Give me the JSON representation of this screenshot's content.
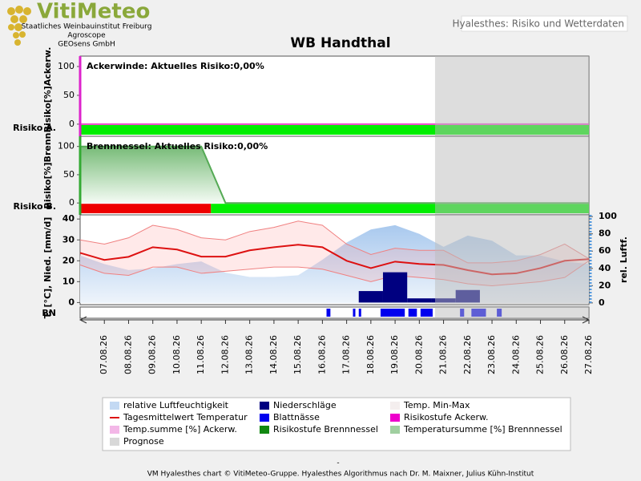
{
  "header": {
    "logo": "VitiMeteo",
    "institutions": [
      "Staatliches Weinbauinstitut Freiburg",
      "Agroscope",
      "GEOsens GmbH"
    ],
    "tab": "Hyalesthes: Risiko und Wetterdaten"
  },
  "title": "WB Handthal",
  "chart_data": [
    {
      "type": "risk",
      "annotation": "Ackerwinde: Aktuelles Risiko:0,00%",
      "ylabel": "Risiko[%]Ackerw.",
      "risk_label": "Risiko A.",
      "ylim": [
        -21,
        118
      ],
      "yticks": [
        0,
        50,
        100
      ],
      "axis_color": "#dd22cc",
      "series": [
        {
          "color": "#ee44cc",
          "fill": false,
          "x": [
            6,
            27
          ],
          "values": [
            0,
            0
          ]
        }
      ],
      "risk_levels": [
        {
          "from": 6,
          "to": 27,
          "color": "#00ee00"
        }
      ]
    },
    {
      "type": "risk",
      "annotation": "Brennnessel: Aktuelles Risiko:0,00%",
      "ylabel": "Risiko[%]Brenn.",
      "risk_label": "Risiko B.",
      "ylim": [
        -21,
        118
      ],
      "yticks": [
        0,
        50,
        100
      ],
      "axis_color": "#33aa33",
      "series": [
        {
          "color": "#55aa55",
          "fill": true,
          "x": [
            6,
            11,
            12,
            27
          ],
          "values": [
            100,
            100,
            0,
            0
          ]
        }
      ],
      "risk_levels": [
        {
          "from": 6,
          "to": 11.4,
          "color": "#ee0000"
        },
        {
          "from": 11.4,
          "to": 27,
          "color": "#00ee00"
        }
      ]
    },
    {
      "type": "weather",
      "ylabel": "T. [°C], Nied. [mm/d]",
      "y2label": "rel. Luftf.",
      "xlim": [
        6,
        27
      ],
      "xticks": [
        {
          "value": 7,
          "label": "07.08.26"
        },
        {
          "value": 8,
          "label": "08.08.26"
        },
        {
          "value": 9,
          "label": "09.08.26"
        },
        {
          "value": 10,
          "label": "10.08.26"
        },
        {
          "value": 11,
          "label": "11.08.26"
        },
        {
          "value": 12,
          "label": "12.08.26"
        },
        {
          "value": 13,
          "label": "13.08.26"
        },
        {
          "value": 14,
          "label": "14.08.26"
        },
        {
          "value": 15,
          "label": "15.08.26"
        },
        {
          "value": 16,
          "label": "16.08.26"
        },
        {
          "value": 17,
          "label": "17.08.26"
        },
        {
          "value": 18,
          "label": "18.08.26"
        },
        {
          "value": 19,
          "label": "19.08.26"
        },
        {
          "value": 20,
          "label": "20.08.26"
        },
        {
          "value": 21,
          "label": "21.08.26"
        },
        {
          "value": 22,
          "label": "22.08.26"
        },
        {
          "value": 23,
          "label": "23.08.26"
        },
        {
          "value": 24,
          "label": "24.08.26"
        },
        {
          "value": 25,
          "label": "25.08.26"
        },
        {
          "value": 26,
          "label": "26.08.26"
        },
        {
          "value": 27,
          "label": "27.08.26"
        }
      ],
      "prognosis_from": 20.65,
      "ylim": [
        -1,
        42
      ],
      "yticks": [
        0,
        10,
        20,
        30,
        40
      ],
      "y2lim": [
        -2,
        102
      ],
      "y2ticks": [
        0,
        20,
        40,
        60,
        80,
        100
      ],
      "x": [
        6,
        7,
        8,
        9,
        10,
        11,
        12,
        13,
        14,
        15,
        16,
        17,
        18,
        19,
        20,
        21,
        22,
        23,
        24,
        25,
        26,
        27
      ],
      "humidity": {
        "color": "#a9c9ee",
        "axis": "y2",
        "values": [
          55,
          45,
          38,
          40,
          45,
          48,
          35,
          30,
          30,
          32,
          50,
          70,
          85,
          90,
          80,
          65,
          78,
          72,
          55,
          55,
          48,
          45
        ]
      },
      "temp_max": {
        "color": "#f08080",
        "values": [
          30,
          28,
          31,
          37,
          35,
          31,
          30,
          34,
          36,
          39,
          37,
          28,
          23,
          26,
          25,
          25,
          19,
          19,
          20,
          23,
          28,
          21
        ]
      },
      "temp_min": {
        "color": "#f08080",
        "values": [
          18,
          14,
          13,
          17,
          17,
          14,
          15,
          16,
          17,
          17,
          16,
          13,
          10,
          13,
          12,
          11,
          9,
          8,
          9,
          10,
          12,
          20
        ]
      },
      "temp_mean": {
        "color": "#dd1111",
        "values": [
          23.8,
          20.4,
          21.9,
          26.5,
          25.4,
          22,
          22,
          25,
          26.5,
          27.7,
          26.5,
          20,
          16.5,
          19.6,
          18.5,
          18,
          15.5,
          13.5,
          14,
          16.5,
          20,
          20.8
        ]
      },
      "precipitation": {
        "color": "#000080",
        "x": [
          18,
          19,
          20,
          21,
          22
        ],
        "values": [
          5.5,
          14.5,
          2,
          2,
          6
        ]
      },
      "leaf_wetness": {
        "label": "BN",
        "color": "#0000ee",
        "spans": [
          [
            16.17,
            16.33
          ],
          [
            17.26,
            17.36
          ],
          [
            17.5,
            17.6
          ],
          [
            18.4,
            19.4
          ],
          [
            19.55,
            19.9
          ],
          [
            20.05,
            20.55
          ],
          [
            21.68,
            21.85
          ],
          [
            22.15,
            22.75
          ],
          [
            23.2,
            23.4
          ]
        ]
      }
    }
  ],
  "legend": [
    {
      "label": "relative Luftfeuchtigkeit",
      "color": "#a9c9ee",
      "symbol": "area"
    },
    {
      "label": "Niederschläge",
      "color": "#000080",
      "symbol": "box"
    },
    {
      "label": "Temp. Min-Max",
      "color": "#f4eeee",
      "symbol": "box"
    },
    {
      "label": "Tagesmittelwert Temperatur",
      "color": "#dd1111",
      "symbol": "line"
    },
    {
      "label": "Blattnässe",
      "color": "#0000ee",
      "symbol": "box"
    },
    {
      "label": "Risikostufe Ackerw.",
      "color": "#ee00cc",
      "symbol": "box"
    },
    {
      "label": "Temp.summe [%] Ackerw.",
      "color": "#ee99dd",
      "symbol": "area"
    },
    {
      "label": "Risikostufe Brennnessel",
      "color": "#118811",
      "symbol": "box"
    },
    {
      "label": "Temperatursumme [%] Brennnessel",
      "color": "#77bb77",
      "symbol": "area"
    },
    {
      "label": "Prognose",
      "color": "#d8d8d8",
      "symbol": "box"
    }
  ],
  "footer": {
    "dash": "-",
    "credit": "VM Hyalesthes chart © VitiMeteo-Gruppe. Hyalesthes Algorithmus nach Dr. M. Maixner, Julius Kühn-Institut"
  }
}
